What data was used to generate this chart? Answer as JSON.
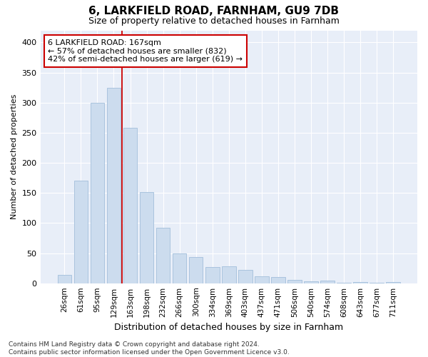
{
  "title1": "6, LARKFIELD ROAD, FARNHAM, GU9 7DB",
  "title2": "Size of property relative to detached houses in Farnham",
  "xlabel": "Distribution of detached houses by size in Farnham",
  "ylabel": "Number of detached properties",
  "footnote": "Contains HM Land Registry data © Crown copyright and database right 2024.\nContains public sector information licensed under the Open Government Licence v3.0.",
  "categories": [
    "26sqm",
    "61sqm",
    "95sqm",
    "129sqm",
    "163sqm",
    "198sqm",
    "232sqm",
    "266sqm",
    "300sqm",
    "334sqm",
    "369sqm",
    "403sqm",
    "437sqm",
    "471sqm",
    "506sqm",
    "540sqm",
    "574sqm",
    "608sqm",
    "643sqm",
    "677sqm",
    "711sqm"
  ],
  "values": [
    14,
    170,
    300,
    325,
    258,
    152,
    92,
    50,
    43,
    27,
    28,
    22,
    12,
    10,
    5,
    3,
    4,
    1,
    2,
    1,
    2
  ],
  "bar_color": "#ccdcee",
  "bar_edge_color": "#aac4de",
  "background_color": "#e8eef8",
  "grid_color": "#ffffff",
  "annotation_box_line1": "6 LARKFIELD ROAD: 167sqm",
  "annotation_box_line2": "← 57% of detached houses are smaller (832)",
  "annotation_box_line3": "42% of semi-detached houses are larger (619) →",
  "annotation_box_color": "#ffffff",
  "annotation_box_edge_color": "#cc0000",
  "vline_color": "#cc0000",
  "vline_x": 3.5,
  "ylim_max": 420,
  "yticks": [
    0,
    50,
    100,
    150,
    200,
    250,
    300,
    350,
    400
  ],
  "title1_fontsize": 11,
  "title2_fontsize": 9,
  "xlabel_fontsize": 9,
  "ylabel_fontsize": 8,
  "tick_fontsize": 8,
  "footnote_fontsize": 6.5
}
